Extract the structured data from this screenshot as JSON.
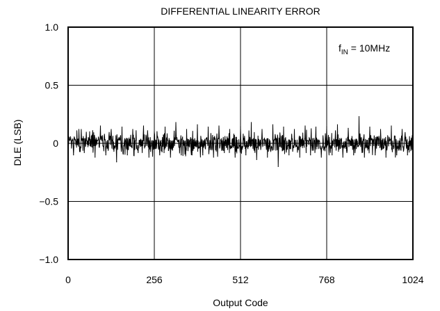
{
  "chart_data": {
    "type": "line",
    "title": "DIFFERENTIAL LINEARITY ERROR",
    "xlabel": "Output Code",
    "ylabel": "DLE (LSB)",
    "xlim": [
      0,
      1024
    ],
    "ylim": [
      -1.0,
      1.0
    ],
    "xticks": [
      0,
      256,
      512,
      768,
      1024
    ],
    "xtick_labels": [
      "0",
      "256",
      "512",
      "768",
      "1024"
    ],
    "yticks": [
      1.0,
      0.5,
      0,
      -0.5,
      -1.0
    ],
    "ytick_labels": [
      "1.0",
      "0.5",
      "0",
      "−0.5",
      "−1.0"
    ],
    "grid": true,
    "annotation": {
      "main": "f",
      "sub": "IN",
      "rest": " = 10MHz"
    },
    "series": [
      {
        "x": [
          0,
          16,
          32,
          48,
          64,
          80,
          96,
          112,
          128,
          144,
          160,
          176,
          192,
          208,
          224,
          240,
          256,
          272,
          288,
          304,
          320,
          336,
          352,
          368,
          384,
          400,
          416,
          432,
          448,
          464,
          480,
          496,
          512,
          528,
          544,
          560,
          576,
          592,
          608,
          624,
          640,
          656,
          672,
          688,
          704,
          720,
          736,
          752,
          768,
          784,
          800,
          816,
          832,
          848,
          864,
          880,
          896,
          912,
          928,
          944,
          960,
          976,
          992,
          1008,
          1023
        ],
        "values": [
          0.08,
          -0.1,
          0.12,
          -0.08,
          0.1,
          -0.12,
          0.15,
          -0.1,
          0.12,
          -0.16,
          0.14,
          -0.1,
          0.12,
          -0.08,
          0.15,
          -0.12,
          0.1,
          -0.1,
          0.14,
          -0.12,
          0.18,
          -0.1,
          0.12,
          -0.1,
          0.16,
          -0.1,
          0.14,
          -0.12,
          0.15,
          -0.08,
          0.12,
          -0.12,
          0.14,
          -0.1,
          0.18,
          -0.14,
          0.12,
          -0.12,
          0.16,
          -0.2,
          0.14,
          -0.1,
          0.12,
          -0.12,
          0.15,
          -0.1,
          0.14,
          -0.12,
          0.14,
          -0.1,
          0.16,
          -0.12,
          0.13,
          -0.1,
          0.23,
          -0.12,
          0.14,
          -0.1,
          0.12,
          -0.12,
          0.15,
          -0.1,
          0.12,
          -0.1,
          0.06
        ]
      }
    ]
  }
}
